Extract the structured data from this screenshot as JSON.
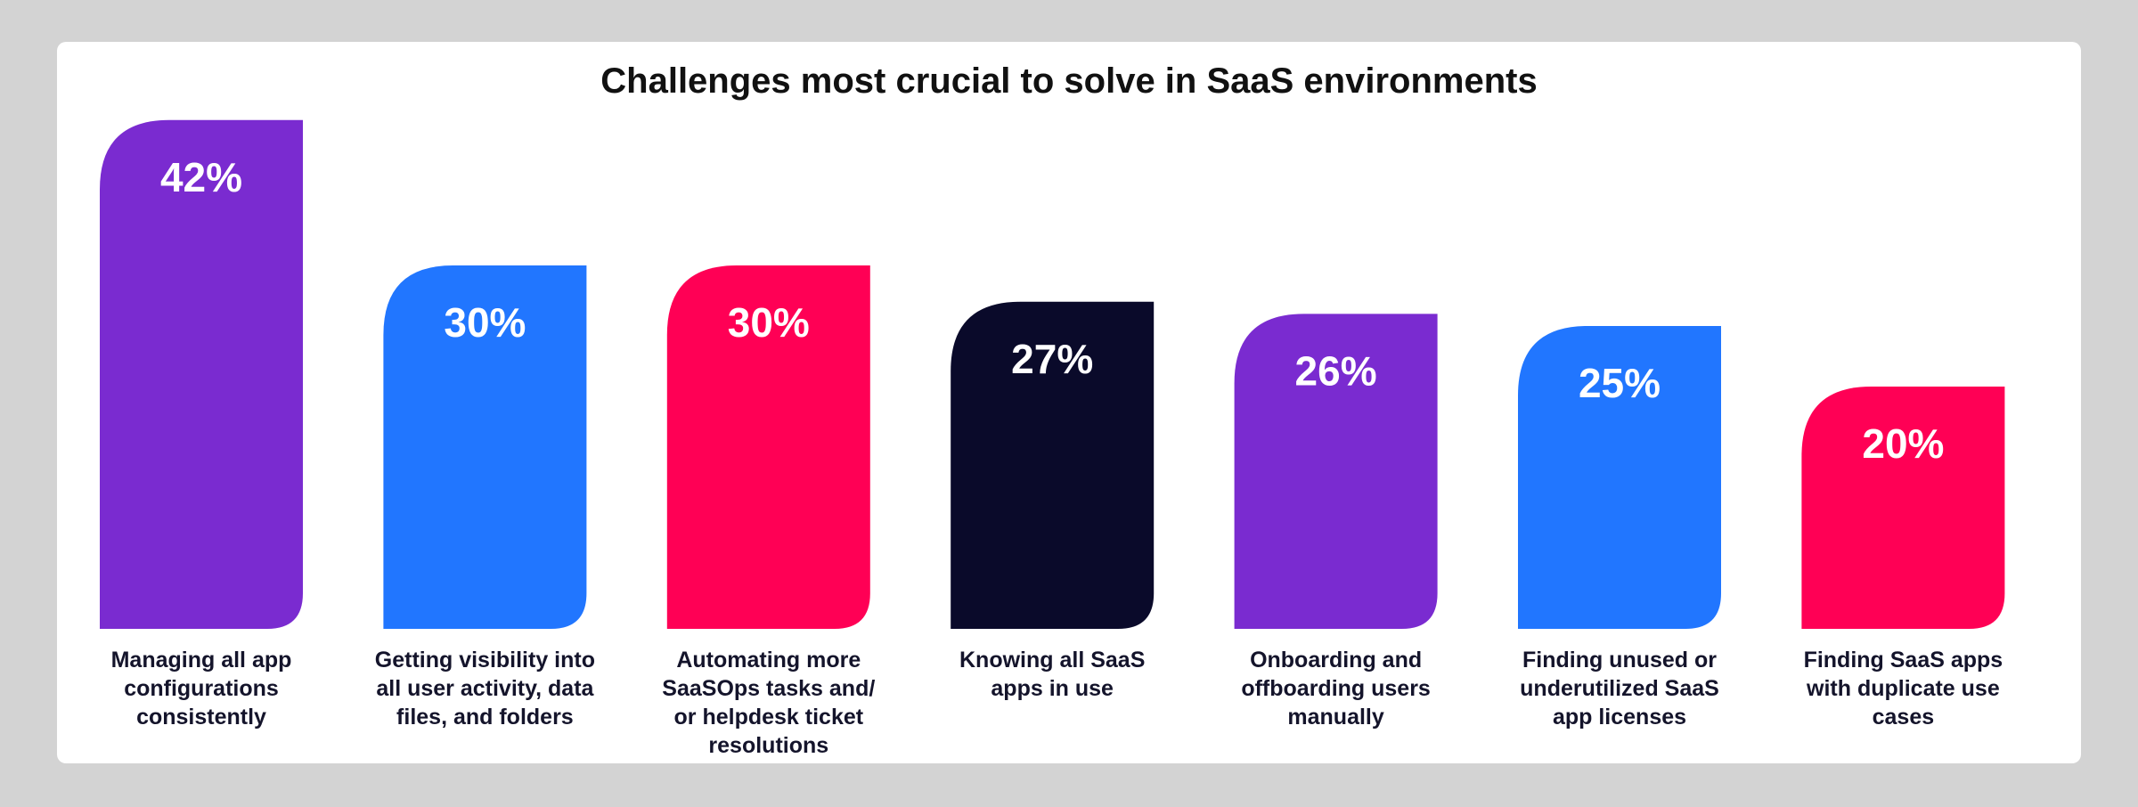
{
  "chart_data": {
    "type": "bar",
    "title": "Challenges most crucial to solve in SaaS environments",
    "categories": [
      "Managing all app configurations consistently",
      "Getting visibility into all user activity, data files, and folders",
      "Automating more SaaSOps tasks and/ or helpdesk ticket resolutions",
      "Knowing all SaaS apps in use",
      "Onboarding and offboarding users manually",
      "Finding unused or underutilized SaaS app licenses",
      "Finding SaaS apps with duplicate use cases"
    ],
    "values": [
      42,
      30,
      30,
      27,
      26,
      25,
      20
    ],
    "value_labels": [
      "42%",
      "30%",
      "30%",
      "27%",
      "26%",
      "25%",
      "20%"
    ],
    "colors": [
      "#7a2bd0",
      "#2176ff",
      "#ff0055",
      "#0a0a2a",
      "#7a2bd0",
      "#2176ff",
      "#ff0055"
    ]
  }
}
